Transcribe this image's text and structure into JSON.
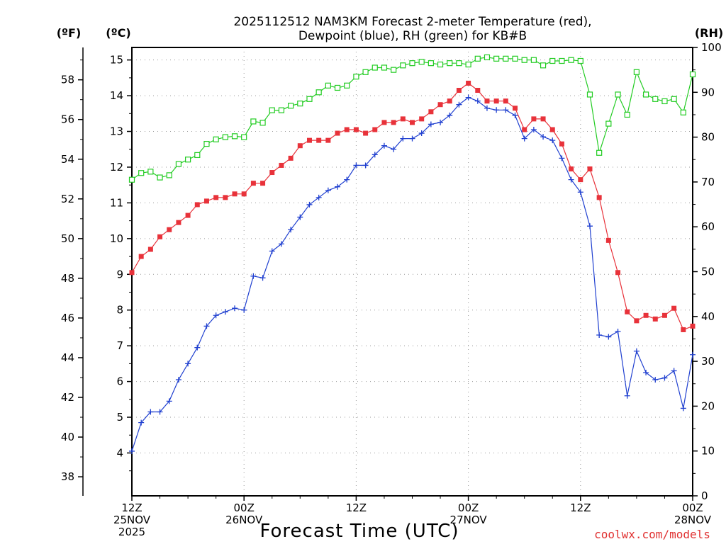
{
  "chart_data": {
    "type": "line",
    "title": [
      "2025112512 NAM3KM Forecast 2-meter Temperature (red),",
      "Dewpoint (blue), RH (green) for KB#B"
    ],
    "xlabel": "Forecast Time (UTC)",
    "credit": "coolwx.com/models",
    "left_outer_header": "(ºF)",
    "left_inner_header": "(ºC)",
    "right_header": "(RH)",
    "x_ticks": [
      {
        "hour": 0,
        "lines": [
          "12Z",
          "25NOV",
          "2025"
        ]
      },
      {
        "hour": 12,
        "lines": [
          "00Z",
          "26NOV"
        ]
      },
      {
        "hour": 24,
        "lines": [
          "12Z"
        ]
      },
      {
        "hour": 36,
        "lines": [
          "00Z",
          "27NOV"
        ]
      },
      {
        "hour": 48,
        "lines": [
          "12Z"
        ]
      },
      {
        "hour": 60,
        "lines": [
          "00Z",
          "28NOV"
        ]
      }
    ],
    "xlim": [
      0,
      60
    ],
    "ylim_c": [
      2.8,
      15.35
    ],
    "c_ticks": [
      4,
      5,
      6,
      7,
      8,
      9,
      10,
      11,
      12,
      13,
      14,
      15
    ],
    "f_ticks": [
      38,
      40,
      42,
      44,
      46,
      48,
      50,
      52,
      54,
      56,
      58
    ],
    "ylim_rh": [
      0,
      100
    ],
    "rh_ticks": [
      0,
      10,
      20,
      30,
      40,
      50,
      60,
      70,
      80,
      90,
      100
    ],
    "series": [
      {
        "name": "Temperature (°C)",
        "color": "#e8323a",
        "marker": "filled-square",
        "axis": "c",
        "values": [
          9.05,
          9.5,
          9.7,
          10.05,
          10.25,
          10.45,
          10.65,
          10.95,
          11.05,
          11.15,
          11.15,
          11.25,
          11.25,
          11.55,
          11.55,
          11.85,
          12.05,
          12.25,
          12.6,
          12.75,
          12.75,
          12.75,
          12.95,
          13.05,
          13.05,
          12.95,
          13.05,
          13.25,
          13.25,
          13.35,
          13.25,
          13.35,
          13.55,
          13.75,
          13.85,
          14.15,
          14.35,
          14.15,
          13.85,
          13.85,
          13.85,
          13.65,
          13.05,
          13.35,
          13.35,
          13.05,
          12.65,
          11.95,
          11.65,
          11.95,
          11.15,
          9.95,
          9.05,
          7.95,
          7.7,
          7.85,
          7.75,
          7.85,
          8.05,
          7.45,
          7.55
        ]
      },
      {
        "name": "Dewpoint (°C)",
        "color": "#2040d0",
        "marker": "plus",
        "axis": "c",
        "values": [
          4.05,
          4.85,
          5.15,
          5.15,
          5.45,
          6.05,
          6.5,
          6.95,
          7.55,
          7.85,
          7.95,
          8.05,
          8.0,
          8.95,
          8.9,
          9.65,
          9.85,
          10.25,
          10.6,
          10.95,
          11.15,
          11.35,
          11.45,
          11.65,
          12.05,
          12.05,
          12.35,
          12.6,
          12.5,
          12.8,
          12.8,
          12.95,
          13.2,
          13.25,
          13.45,
          13.75,
          13.95,
          13.85,
          13.65,
          13.6,
          13.6,
          13.45,
          12.8,
          13.05,
          12.85,
          12.75,
          12.25,
          11.65,
          11.3,
          10.35,
          7.3,
          7.25,
          7.4,
          5.6,
          6.85,
          6.25,
          6.05,
          6.1,
          6.3,
          5.25,
          6.75
        ]
      },
      {
        "name": "RH (%)",
        "color": "#22cc22",
        "marker": "open-square",
        "axis": "rh",
        "values": [
          70.5,
          72,
          72.3,
          71,
          71.5,
          74,
          75,
          76,
          78.5,
          79.5,
          80,
          80.2,
          80,
          83.5,
          83.2,
          86,
          86,
          87,
          87.5,
          88.5,
          90,
          91.5,
          91,
          91.5,
          93.5,
          94.5,
          95.5,
          95.5,
          95,
          96,
          96.5,
          96.8,
          96.5,
          96.2,
          96.5,
          96.5,
          96.2,
          97.5,
          97.8,
          97.5,
          97.5,
          97.5,
          97.2,
          97.2,
          96,
          97,
          97,
          97.2,
          97,
          89.5,
          76.5,
          83,
          89.5,
          85,
          94.5,
          89.5,
          88.5,
          88,
          88.5,
          85.5,
          94
        ]
      }
    ]
  }
}
